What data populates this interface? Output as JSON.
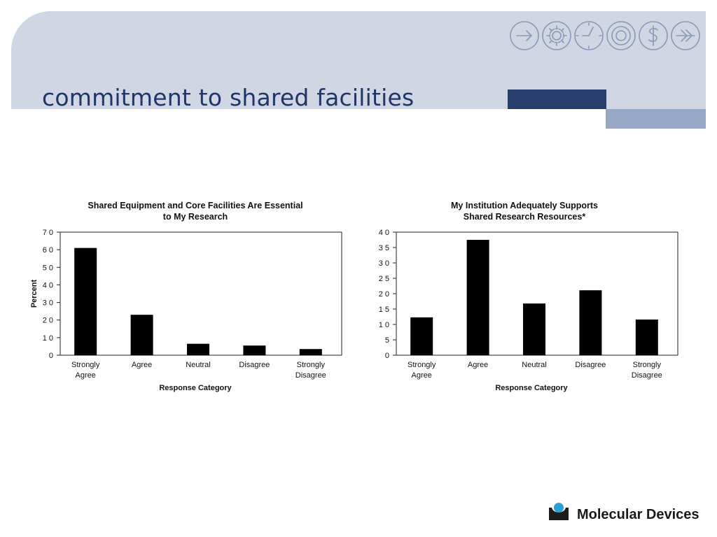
{
  "slide": {
    "title": "commitment to shared facilities",
    "brand_colors": {
      "band": "#d0d6e4",
      "title": "#1f3668",
      "accent_dark": "#273f6c",
      "accent_light": "#97a7c6",
      "icons": "#8a98b8"
    },
    "icons": [
      "arrow-right-icon",
      "gear-icon",
      "clock-icon",
      "target-icon",
      "dollar-icon",
      "double-arrow-icon"
    ]
  },
  "chart_data": [
    {
      "type": "bar",
      "title": "Shared Equipment and Core Facilities Are Essential\nto My Research",
      "xlabel": "Response Category",
      "ylabel": "Percent",
      "ylim": [
        0,
        70
      ],
      "yticks": [
        0,
        10,
        20,
        30,
        40,
        50,
        60,
        70
      ],
      "categories": [
        "Strongly\nAgree",
        "Agree",
        "Neutral",
        "Disagree",
        "Strongly\nDisagree"
      ],
      "values": [
        61,
        23,
        6.5,
        5.5,
        3.5
      ],
      "grid": false,
      "color": "#000000"
    },
    {
      "type": "bar",
      "title": "My Institution Adequately Supports\nShared Research Resources*",
      "xlabel": "Response Category",
      "ylabel": "",
      "ylim": [
        0,
        40
      ],
      "yticks": [
        0,
        5,
        10,
        15,
        20,
        25,
        30,
        35,
        40
      ],
      "categories": [
        "Strongly\nAgree",
        "Agree",
        "Neutral",
        "Disagree",
        "Strongly\nDisagree"
      ],
      "values": [
        12.3,
        37.5,
        16.8,
        21.1,
        11.6
      ],
      "grid": false,
      "color": "#000000"
    }
  ],
  "footer": {
    "logo_text": "Molecular Devices",
    "logo_icon": "molecular-devices-logo-icon"
  }
}
